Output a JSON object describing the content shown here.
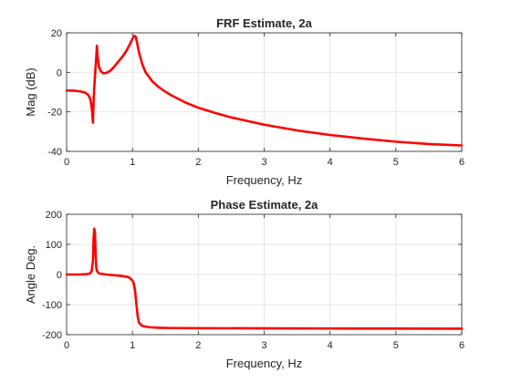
{
  "colors": {
    "series": "#ff0000",
    "axes": "#262626",
    "grid": "#e6e6e6",
    "background": "#ffffff"
  },
  "chart_data": [
    {
      "type": "line",
      "title": "FRF Estimate, 2a",
      "xlabel": "Frequency, Hz",
      "ylabel": "Mag (dB)",
      "xlim": [
        0,
        6
      ],
      "ylim": [
        -40,
        20
      ],
      "xticks": [
        0,
        1,
        2,
        3,
        4,
        5,
        6
      ],
      "yticks": [
        -40,
        -20,
        0,
        20
      ],
      "grid": true,
      "series": [
        {
          "x": [
            0,
            0.1,
            0.2,
            0.28,
            0.33,
            0.36,
            0.38,
            0.39,
            0.4,
            0.41,
            0.43,
            0.45,
            0.46,
            0.47,
            0.49,
            0.52,
            0.56,
            0.6,
            0.65,
            0.7,
            0.75,
            0.8,
            0.85,
            0.9,
            0.95,
            1.0,
            1.03,
            1.05,
            1.07,
            1.1,
            1.15,
            1.2,
            1.3,
            1.4,
            1.5,
            1.6,
            1.8,
            2.0,
            2.25,
            2.5,
            3.0,
            3.5,
            4.0,
            4.5,
            5.0,
            5.5,
            6.0
          ],
          "y": [
            -9.2,
            -9.3,
            -9.6,
            -10.2,
            -11.5,
            -13.5,
            -17.5,
            -21,
            -25.5,
            -14,
            -2,
            7.5,
            13.5,
            8,
            3,
            0.5,
            -0.5,
            -0.3,
            0.5,
            2,
            4,
            6,
            8,
            10.5,
            13.5,
            17,
            18.5,
            18,
            15,
            10,
            4,
            0,
            -4.5,
            -7.5,
            -9.8,
            -11.8,
            -15.2,
            -17.9,
            -20.5,
            -22.8,
            -26.5,
            -29.4,
            -31.7,
            -33.5,
            -35.1,
            -36.3,
            -37
          ]
        }
      ]
    },
    {
      "type": "line",
      "title": "Phase Estimate, 2a",
      "xlabel": "Frequency, Hz",
      "ylabel": "Angle Deg.",
      "xlim": [
        0,
        6
      ],
      "ylim": [
        -200,
        200
      ],
      "xticks": [
        0,
        1,
        2,
        3,
        4,
        5,
        6
      ],
      "yticks": [
        -200,
        -100,
        0,
        100,
        200
      ],
      "grid": true,
      "series": [
        {
          "x": [
            0,
            0.1,
            0.2,
            0.3,
            0.35,
            0.38,
            0.4,
            0.41,
            0.42,
            0.43,
            0.44,
            0.45,
            0.46,
            0.48,
            0.5,
            0.55,
            0.6,
            0.7,
            0.8,
            0.9,
            0.95,
            1.0,
            1.02,
            1.04,
            1.06,
            1.08,
            1.1,
            1.13,
            1.17,
            1.25,
            1.4,
            1.6,
            2.0,
            3.0,
            4.0,
            5.0,
            6.0
          ],
          "y": [
            0,
            0,
            0,
            1,
            3,
            10,
            45,
            120,
            152,
            140,
            70,
            25,
            12,
            6,
            3,
            1.5,
            0,
            -2,
            -4,
            -7,
            -10,
            -20,
            -30,
            -55,
            -100,
            -140,
            -160,
            -168,
            -172,
            -175,
            -177,
            -178,
            -178.5,
            -179,
            -179.5,
            -179.8,
            -180
          ]
        }
      ]
    }
  ]
}
